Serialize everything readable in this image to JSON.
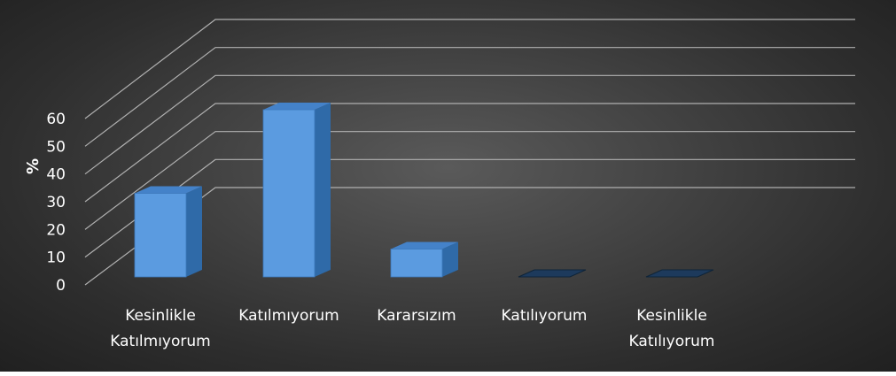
{
  "chart_data": {
    "type": "bar",
    "title": "",
    "xlabel": "",
    "ylabel": "%",
    "ylim": [
      0,
      60
    ],
    "yticks": [
      "0",
      "10",
      "20",
      "30",
      "40",
      "50",
      "60"
    ],
    "grid": true,
    "legend": "none",
    "categories": [
      [
        "Kesinlikle",
        "Katılmıyorum"
      ],
      [
        "Katılmıyorum"
      ],
      [
        "Kararsızım"
      ],
      [
        "Katılıyorum"
      ],
      [
        "Kesinlikle",
        "Katılıyorum"
      ]
    ],
    "values": [
      30,
      60,
      10,
      0,
      0
    ],
    "colors": {
      "bar_front": "#5b9be0",
      "bar_side": "#2f6aa8",
      "bar_top": "#4482c9",
      "grid": "#b0b0b0"
    }
  }
}
